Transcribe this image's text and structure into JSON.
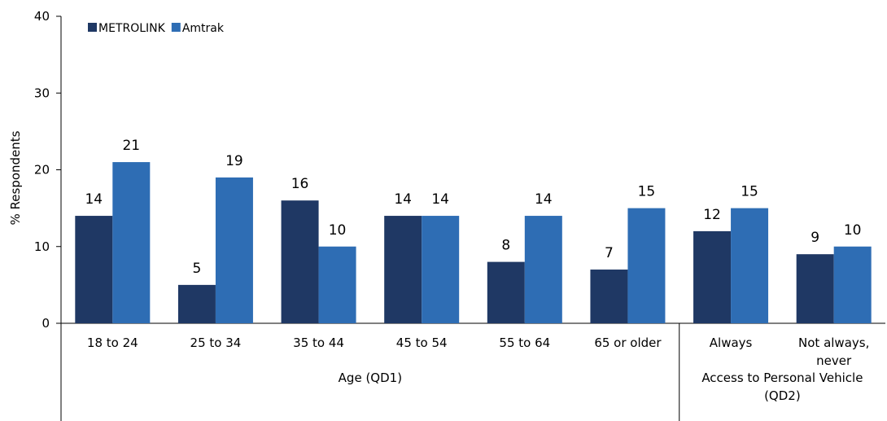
{
  "chart_data": {
    "type": "bar",
    "ylabel": "% Respondents",
    "ylim": [
      0,
      40
    ],
    "yticks": [
      0,
      10,
      20,
      30,
      40
    ],
    "grid": false,
    "legend_position": "top-left",
    "categories": [
      [
        "18 to 24"
      ],
      [
        "25 to 34"
      ],
      [
        "35 to 44"
      ],
      [
        "45 to 54"
      ],
      [
        "55 to 64"
      ],
      [
        "65 or older"
      ],
      [
        "Always"
      ],
      [
        "Not always,",
        "never"
      ]
    ],
    "groups": [
      {
        "lines": [
          "Age (QD1)"
        ],
        "from": 0,
        "to": 5
      },
      {
        "lines": [
          "Access to Personal Vehicle",
          "(QD2)"
        ],
        "from": 6,
        "to": 7
      }
    ],
    "series": [
      {
        "name": "METROLINK",
        "color": "#1f3864",
        "values": [
          14,
          5,
          16,
          14,
          8,
          7,
          12,
          9
        ]
      },
      {
        "name": "Amtrak",
        "color": "#2e6db4",
        "values": [
          21,
          19,
          10,
          14,
          14,
          15,
          15,
          10
        ]
      }
    ]
  }
}
